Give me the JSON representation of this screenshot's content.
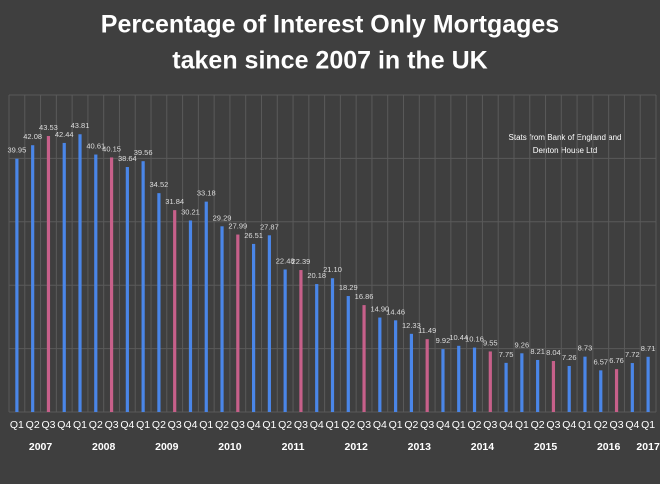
{
  "chart_data": {
    "type": "bar",
    "title_lines": [
      "Percentage of Interest Only Mortgages",
      "taken since 2007 in the UK"
    ],
    "annotation_lines": [
      "Stats from Bank of England and",
      "Denton House Ltd"
    ],
    "categories": [
      "Q1",
      "Q2",
      "Q3",
      "Q4",
      "Q1",
      "Q2",
      "Q3",
      "Q4",
      "Q1",
      "Q2",
      "Q3",
      "Q4",
      "Q1",
      "Q2",
      "Q3",
      "Q4",
      "Q1",
      "Q2",
      "Q3",
      "Q4",
      "Q1",
      "Q2",
      "Q3",
      "Q4",
      "Q1",
      "Q2",
      "Q3",
      "Q4",
      "Q1",
      "Q2",
      "Q3",
      "Q4",
      "Q1",
      "Q2",
      "Q3",
      "Q4",
      "Q1",
      "Q2",
      "Q3",
      "Q4",
      "Q1"
    ],
    "years": [
      "2007",
      "2008",
      "2009",
      "2010",
      "2011",
      "2012",
      "2013",
      "2014",
      "2015",
      "2016",
      "2017"
    ],
    "values": [
      39.95,
      42.08,
      43.53,
      42.44,
      43.81,
      40.61,
      40.15,
      38.64,
      39.56,
      34.52,
      31.84,
      30.21,
      33.18,
      29.29,
      27.99,
      26.51,
      27.87,
      22.48,
      22.39,
      20.18,
      21.1,
      18.29,
      16.86,
      14.9,
      14.46,
      12.33,
      11.49,
      9.92,
      10.44,
      10.16,
      9.55,
      7.75,
      9.26,
      8.21,
      8.04,
      7.26,
      8.73,
      6.57,
      6.76,
      7.72,
      8.71
    ],
    "value_labels": [
      "39.95",
      "42.08",
      "43.53",
      "42.44",
      "43.81",
      "40.61",
      "40.15",
      "38.64",
      "39.56",
      "34.52",
      "31.84",
      "30.21",
      "33.18",
      "29.29",
      "27.99",
      "26.51",
      "27.87",
      "22.48",
      "22.39",
      "20.18",
      "21.10",
      "18.29",
      "16.86",
      "14.90",
      "14.46",
      "12.33",
      "11.49",
      "9.92",
      "10.44",
      "10.16",
      "9.55",
      "7.75",
      "9.26",
      "8.21",
      "8.04",
      "7.26",
      "8.73",
      "6.57",
      "6.76",
      "7.72",
      "8.71"
    ],
    "colors": [
      "#4a86e8",
      "#4a86e8",
      "#c7608a",
      "#4a86e8",
      "#4a86e8",
      "#4a86e8",
      "#c7608a",
      "#4a86e8",
      "#4a86e8",
      "#4a86e8",
      "#c7608a",
      "#4a86e8",
      "#4a86e8",
      "#4a86e8",
      "#c7608a",
      "#4a86e8",
      "#4a86e8",
      "#4a86e8",
      "#c7608a",
      "#4a86e8",
      "#4a86e8",
      "#4a86e8",
      "#c7608a",
      "#4a86e8",
      "#4a86e8",
      "#4a86e8",
      "#c7608a",
      "#4a86e8",
      "#4a86e8",
      "#4a86e8",
      "#c7608a",
      "#4a86e8",
      "#4a86e8",
      "#4a86e8",
      "#c7608a",
      "#4a86e8",
      "#4a86e8",
      "#4a86e8",
      "#c7608a",
      "#4a86e8",
      "#4a86e8"
    ],
    "ylim": [
      0,
      50
    ],
    "yticks": [
      0,
      10,
      20,
      30,
      40,
      50
    ],
    "grid": true
  }
}
